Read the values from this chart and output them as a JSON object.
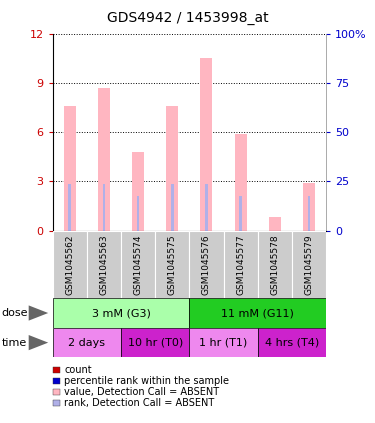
{
  "title": "GDS4942 / 1453998_at",
  "samples": [
    "GSM1045562",
    "GSM1045563",
    "GSM1045574",
    "GSM1045575",
    "GSM1045576",
    "GSM1045577",
    "GSM1045578",
    "GSM1045579"
  ],
  "bar_values_pink": [
    7.6,
    8.7,
    4.8,
    7.6,
    10.5,
    5.9,
    0.8,
    2.9
  ],
  "bar_values_blue": [
    2.85,
    2.85,
    2.1,
    2.85,
    2.85,
    2.1,
    0.0,
    2.1
  ],
  "ylim_left": [
    0,
    12
  ],
  "ylim_right": [
    0,
    100
  ],
  "yticks_left": [
    0,
    3,
    6,
    9,
    12
  ],
  "yticks_right": [
    0,
    25,
    50,
    75,
    100
  ],
  "ytick_labels_right": [
    "0",
    "25",
    "50",
    "75",
    "100%"
  ],
  "dose_groups": [
    {
      "label": "3 mM (G3)",
      "start": 0,
      "end": 4,
      "color": "#aaffaa"
    },
    {
      "label": "11 mM (G11)",
      "start": 4,
      "end": 8,
      "color": "#22cc22"
    }
  ],
  "time_groups": [
    {
      "label": "2 days",
      "start": 0,
      "end": 2,
      "color": "#ee88ee"
    },
    {
      "label": "10 hr (T0)",
      "start": 2,
      "end": 4,
      "color": "#cc22cc"
    },
    {
      "label": "1 hr (T1)",
      "start": 4,
      "end": 6,
      "color": "#ee88ee"
    },
    {
      "label": "4 hrs (T4)",
      "start": 6,
      "end": 8,
      "color": "#cc22cc"
    }
  ],
  "legend_items": [
    {
      "color": "#cc0000",
      "label": "count"
    },
    {
      "color": "#0000cc",
      "label": "percentile rank within the sample"
    },
    {
      "color": "#ffb6c1",
      "label": "value, Detection Call = ABSENT"
    },
    {
      "color": "#b0b0e8",
      "label": "rank, Detection Call = ABSENT"
    }
  ],
  "pink_color": "#ffb6c1",
  "blue_color": "#b0b0e8",
  "tick_label_color_left": "#cc0000",
  "tick_label_color_right": "#0000cc",
  "sample_bg_color": "#cccccc",
  "plot_bg_color": "#ffffff",
  "background_color": "#ffffff"
}
